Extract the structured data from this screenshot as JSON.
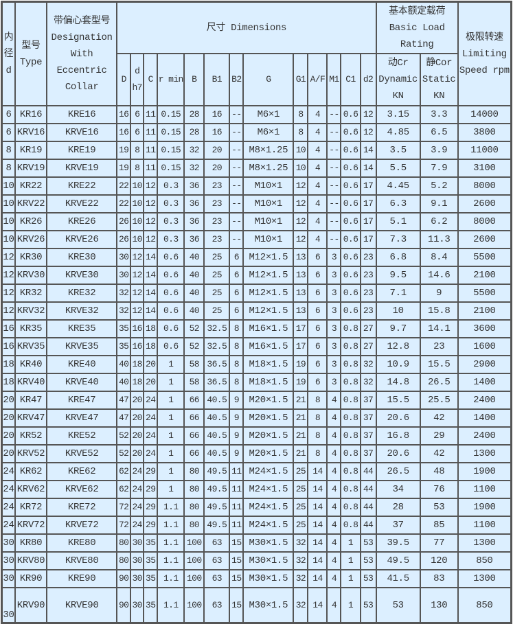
{
  "header": {
    "bore": "内径d",
    "type": "型号Type",
    "designation": "带偏心套型号Designation With Eccentric Collar",
    "dimensions": "尺寸 Dimensions",
    "load_rating": "基本额定载荷Basic Load Rating",
    "speed": "极限转速Limiting Speed rpm",
    "dim_cols": [
      "D",
      "d h7",
      "C",
      "r min",
      "B",
      "B1",
      "B2",
      "G",
      "G1",
      "A/F",
      "M1",
      "C1",
      "d2"
    ],
    "dynamic": "动Cr Dynamic KN",
    "static": "静Cor Static KN"
  },
  "rows": [
    [
      "6",
      "KR16",
      "KRE16",
      "16",
      "6",
      "11",
      "0.15",
      "28",
      "16",
      "--",
      "M6×1",
      "8",
      "4",
      "--",
      "0.6",
      "12",
      "3.15",
      "3.3",
      "14000"
    ],
    [
      "6",
      "KRV16",
      "KRVE16",
      "16",
      "6",
      "11",
      "0.15",
      "28",
      "16",
      "--",
      "M6×1",
      "8",
      "4",
      "--",
      "0.6",
      "12",
      "4.85",
      "6.5",
      "3800"
    ],
    [
      "8",
      "KR19",
      "KRE19",
      "19",
      "8",
      "11",
      "0.15",
      "32",
      "20",
      "--",
      "M8×1.25",
      "10",
      "4",
      "--",
      "0.6",
      "14",
      "3.5",
      "3.9",
      "11000"
    ],
    [
      "8",
      "KRV19",
      "KRVE19",
      "19",
      "8",
      "11",
      "0.15",
      "32",
      "20",
      "--",
      "M8×1.25",
      "10",
      "4",
      "--",
      "0.6",
      "14",
      "5.5",
      "7.9",
      "3100"
    ],
    [
      "10",
      "KR22",
      "KRE22",
      "22",
      "10",
      "12",
      "0.3",
      "36",
      "23",
      "--",
      "M10×1",
      "12",
      "4",
      "--",
      "0.6",
      "17",
      "4.45",
      "5.2",
      "8000"
    ],
    [
      "10",
      "KRV22",
      "KRVE22",
      "22",
      "10",
      "12",
      "0.3",
      "36",
      "23",
      "--",
      "M10×1",
      "12",
      "4",
      "--",
      "0.6",
      "17",
      "6.3",
      "9.1",
      "2600"
    ],
    [
      "10",
      "KR26",
      "KRE26",
      "26",
      "10",
      "12",
      "0.3",
      "36",
      "23",
      "--",
      "M10×1",
      "12",
      "4",
      "--",
      "0.6",
      "17",
      "5.1",
      "6.2",
      "8000"
    ],
    [
      "10",
      "KRV26",
      "KRVE26",
      "26",
      "10",
      "12",
      "0.3",
      "36",
      "23",
      "--",
      "M10×1",
      "12",
      "4",
      "--",
      "0.6",
      "17",
      "7.3",
      "11.3",
      "2600"
    ],
    [
      "12",
      "KR30",
      "KRE30",
      "30",
      "12",
      "14",
      "0.6",
      "40",
      "25",
      "6",
      "M12×1.5",
      "13",
      "6",
      "3",
      "0.6",
      "23",
      "6.8",
      "8.4",
      "5500"
    ],
    [
      "12",
      "KRV30",
      "KRVE30",
      "30",
      "12",
      "14",
      "0.6",
      "40",
      "25",
      "6",
      "M12×1.5",
      "13",
      "6",
      "3",
      "0.6",
      "23",
      "9.5",
      "14.6",
      "2100"
    ],
    [
      "12",
      "KR32",
      "KRE32",
      "32",
      "12",
      "14",
      "0.6",
      "40",
      "25",
      "6",
      "M12×1.5",
      "13",
      "6",
      "3",
      "0.6",
      "23",
      "7.1",
      "9",
      "5500"
    ],
    [
      "12",
      "KRV32",
      "KRVE32",
      "32",
      "12",
      "14",
      "0.6",
      "40",
      "25",
      "6",
      "M12×1.5",
      "13",
      "6",
      "3",
      "0.6",
      "23",
      "10",
      "15.8",
      "2100"
    ],
    [
      "16",
      "KR35",
      "KRE35",
      "35",
      "16",
      "18",
      "0.6",
      "52",
      "32.5",
      "8",
      "M16×1.5",
      "17",
      "6",
      "3",
      "0.8",
      "27",
      "9.7",
      "14.1",
      "3600"
    ],
    [
      "16",
      "KRV35",
      "KRVE35",
      "35",
      "16",
      "18",
      "0.6",
      "52",
      "32.5",
      "8",
      "M16×1.5",
      "17",
      "6",
      "3",
      "0.8",
      "27",
      "12.8",
      "23",
      "1600"
    ],
    [
      "18",
      "KR40",
      "KRE40",
      "40",
      "18",
      "20",
      "1",
      "58",
      "36.5",
      "8",
      "M18×1.5",
      "19",
      "6",
      "3",
      "0.8",
      "32",
      "10.9",
      "15.5",
      "2900"
    ],
    [
      "18",
      "KRV40",
      "KRVE40",
      "40",
      "18",
      "20",
      "1",
      "58",
      "36.5",
      "8",
      "M18×1.5",
      "19",
      "6",
      "3",
      "0.8",
      "32",
      "14.8",
      "26.5",
      "1400"
    ],
    [
      "20",
      "KR47",
      "KRE47",
      "47",
      "20",
      "24",
      "1",
      "66",
      "40.5",
      "9",
      "M20×1.5",
      "21",
      "8",
      "4",
      "0.8",
      "37",
      "15.5",
      "25.5",
      "2400"
    ],
    [
      "20",
      "KRV47",
      "KRVE47",
      "47",
      "20",
      "24",
      "1",
      "66",
      "40.5",
      "9",
      "M20×1.5",
      "21",
      "8",
      "4",
      "0.8",
      "37",
      "20.6",
      "42",
      "1400"
    ],
    [
      "20",
      "KR52",
      "KRE52",
      "52",
      "20",
      "24",
      "1",
      "66",
      "40.5",
      "9",
      "M20×1.5",
      "21",
      "8",
      "4",
      "0.8",
      "37",
      "16.8",
      "29",
      "2400"
    ],
    [
      "20",
      "KRV52",
      "KRVE52",
      "52",
      "20",
      "24",
      "1",
      "66",
      "40.5",
      "9",
      "M20×1.5",
      "21",
      "8",
      "4",
      "0.8",
      "37",
      "20.6",
      "42",
      "1300"
    ],
    [
      "24",
      "KR62",
      "KRE62",
      "62",
      "24",
      "29",
      "1",
      "80",
      "49.5",
      "11",
      "M24×1.5",
      "25",
      "14",
      "4",
      "0.8",
      "44",
      "26.5",
      "48",
      "1900"
    ],
    [
      "24",
      "KRV62",
      "KRVE62",
      "62",
      "24",
      "29",
      "1",
      "80",
      "49.5",
      "11",
      "M24×1.5",
      "25",
      "14",
      "4",
      "0.8",
      "44",
      "34",
      "76",
      "1100"
    ],
    [
      "24",
      "KR72",
      "KRE72",
      "72",
      "24",
      "29",
      "1.1",
      "80",
      "49.5",
      "11",
      "M24×1.5",
      "25",
      "14",
      "4",
      "0.8",
      "44",
      "28",
      "53",
      "1900"
    ],
    [
      "24",
      "KRV72",
      "KRVE72",
      "72",
      "24",
      "29",
      "1.1",
      "80",
      "49.5",
      "11",
      "M24×1.5",
      "25",
      "14",
      "4",
      "0.8",
      "44",
      "37",
      "85",
      "1100"
    ],
    [
      "30",
      "KR80",
      "KRE80",
      "80",
      "30",
      "35",
      "1.1",
      "100",
      "63",
      "15",
      "M30×1.5",
      "32",
      "14",
      "4",
      "1",
      "53",
      "39.5",
      "77",
      "1300"
    ],
    [
      "30",
      "KRV80",
      "KRVE80",
      "80",
      "30",
      "35",
      "1.1",
      "100",
      "63",
      "15",
      "M30×1.5",
      "32",
      "14",
      "4",
      "1",
      "53",
      "49.5",
      "120",
      "850"
    ],
    [
      "30",
      "KR90",
      "KRE90",
      "90",
      "30",
      "35",
      "1.1",
      "100",
      "63",
      "15",
      "M30×1.5",
      "32",
      "14",
      "4",
      "1",
      "53",
      "41.5",
      "83",
      "1300"
    ],
    [
      "30",
      "KRV90",
      "KRVE90",
      "90",
      "30",
      "35",
      "1.1",
      "100",
      "63",
      "15",
      "M30×1.5",
      "32",
      "14",
      "4",
      "1",
      "53",
      "53",
      "130",
      "850"
    ]
  ]
}
